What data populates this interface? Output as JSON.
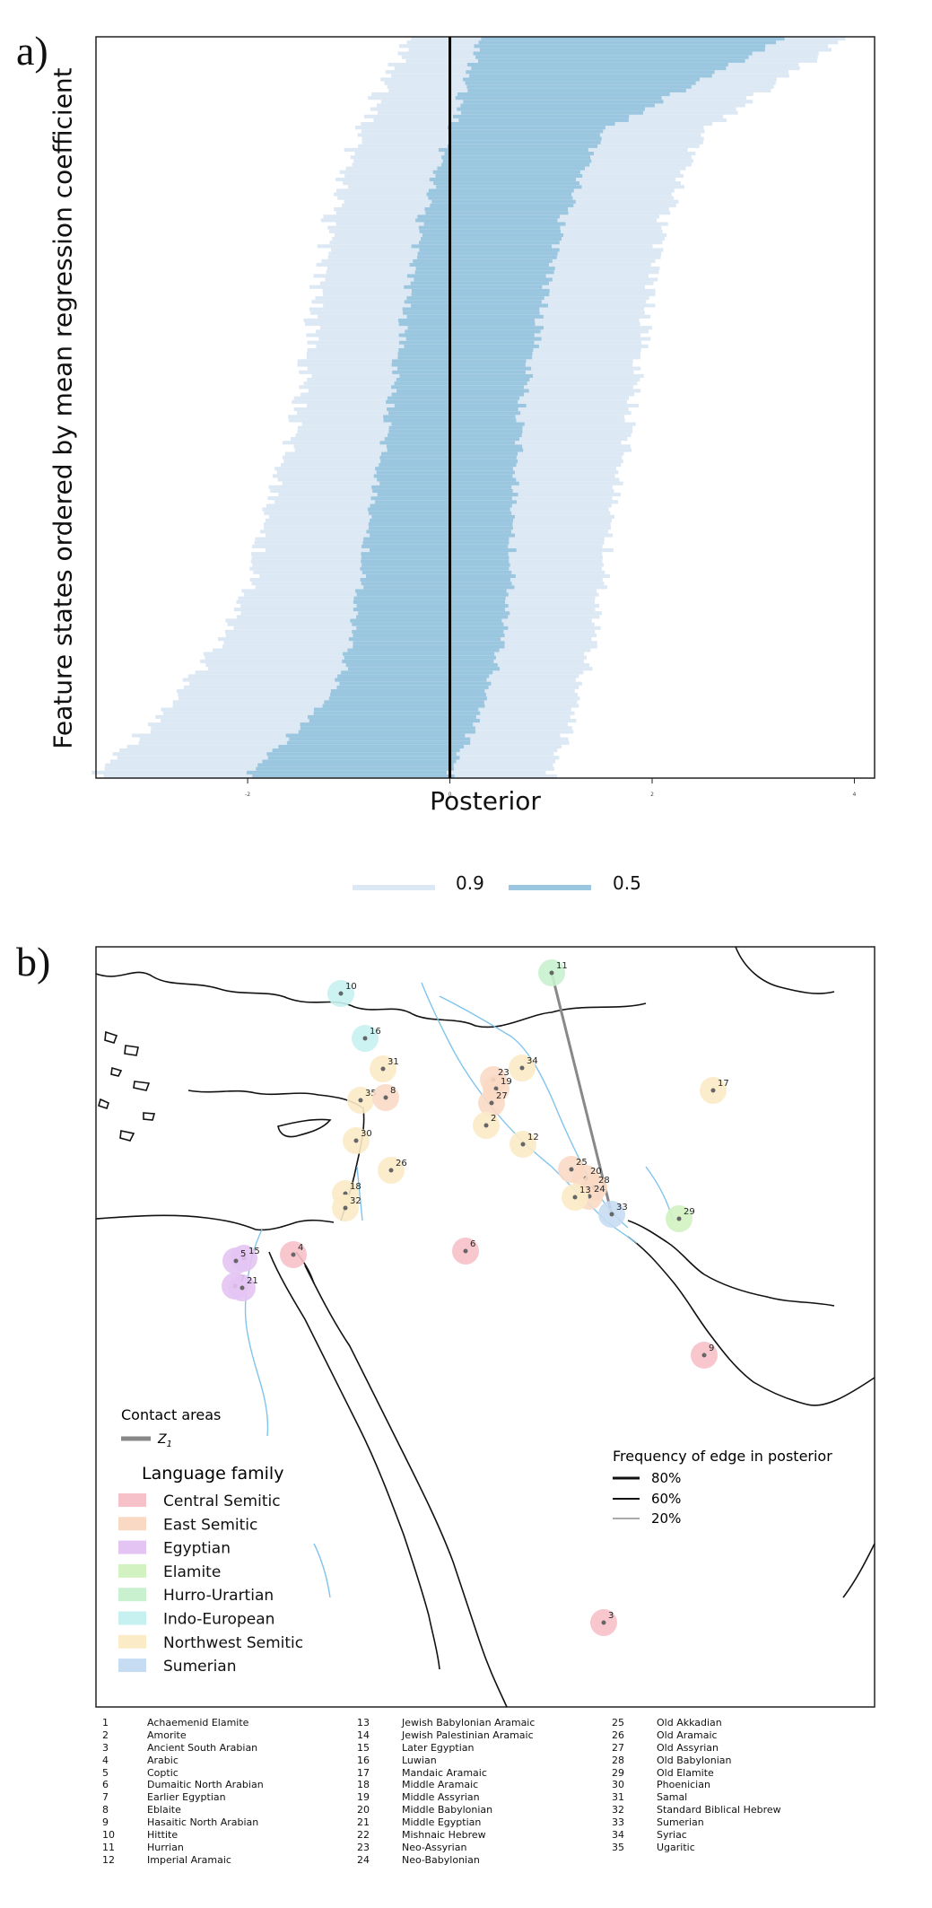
{
  "panel_a": {
    "letter": "a)",
    "ylabel": "Feature states ordered by mean regression coefficient",
    "xlabel": "Posterior",
    "x_ticks": [
      {
        "value": -2,
        "label": "-2"
      },
      {
        "value": 0,
        "label": "0"
      },
      {
        "value": 2,
        "label": "2"
      },
      {
        "value": 4,
        "label": "4"
      }
    ],
    "legend": [
      {
        "label": "0.9",
        "color": "#dce8f3"
      },
      {
        "label": "0.5",
        "color": "#9ac6df"
      }
    ]
  },
  "chart_data": {
    "type": "interval-bars",
    "n_features": 200,
    "xlim": [
      -3.5,
      4.2
    ],
    "intervals": [
      {
        "name": "0.9",
        "color": "#dce8f3"
      },
      {
        "name": "0.5",
        "color": "#9ac6df"
      }
    ],
    "grid": false,
    "reference_line_at": 0,
    "sampled_rows": [
      {
        "rank": 1,
        "lo90": -3.5,
        "lo50": -2.0,
        "hi50": 0.0,
        "hi90": 1.0
      },
      {
        "rank": 25,
        "lo90": -2.6,
        "lo50": -1.1,
        "hi50": 0.4,
        "hi90": 1.3
      },
      {
        "rank": 50,
        "lo90": -2.0,
        "lo50": -0.9,
        "hi50": 0.6,
        "hi90": 1.5
      },
      {
        "rank": 100,
        "lo90": -1.5,
        "lo50": -0.6,
        "hi50": 0.7,
        "hi90": 1.8
      },
      {
        "rank": 150,
        "lo90": -1.2,
        "lo50": -0.3,
        "hi50": 1.1,
        "hi90": 2.1
      },
      {
        "rank": 175,
        "lo90": -0.9,
        "lo50": 0.0,
        "hi50": 1.5,
        "hi90": 2.5
      },
      {
        "rank": 200,
        "lo90": -0.4,
        "lo50": 0.3,
        "hi50": 3.3,
        "hi90": 3.9
      }
    ]
  },
  "panel_b": {
    "letter": "b)",
    "contact_title": "Contact areas",
    "contact_label": "Z",
    "contact_sub": "1",
    "family_title": "Language family",
    "families": [
      {
        "label": "Central Semitic",
        "color": "#f7c1c9"
      },
      {
        "label": "East Semitic",
        "color": "#f9d9c4"
      },
      {
        "label": "Egyptian",
        "color": "#e4c4f3"
      },
      {
        "label": "Elamite",
        "color": "#d2f2c2"
      },
      {
        "label": "Hurro-Urartian",
        "color": "#c9f1cf"
      },
      {
        "label": "Indo-European",
        "color": "#c7f1f1"
      },
      {
        "label": "Northwest Semitic",
        "color": "#fbebc7"
      },
      {
        "label": "Sumerian",
        "color": "#c6dcf2"
      }
    ],
    "freq_title": "Frequency of edge in posterior",
    "freq": [
      {
        "label": "80%"
      },
      {
        "label": "60%"
      },
      {
        "label": "20%"
      }
    ],
    "points": [
      {
        "id": "10",
        "family": 5
      },
      {
        "id": "11",
        "family": 4
      },
      {
        "id": "16",
        "family": 5
      },
      {
        "id": "31",
        "family": 6
      },
      {
        "id": "34",
        "family": 6
      },
      {
        "id": "17",
        "family": 6
      },
      {
        "id": "23",
        "family": 1
      },
      {
        "id": "19",
        "family": 1
      },
      {
        "id": "27",
        "family": 1
      },
      {
        "id": "35",
        "family": 6
      },
      {
        "id": "8",
        "family": 1
      },
      {
        "id": "2",
        "family": 6
      },
      {
        "id": "30",
        "family": 6
      },
      {
        "id": "12",
        "family": 6
      },
      {
        "id": "26",
        "family": 6
      },
      {
        "id": "25",
        "family": 1
      },
      {
        "id": "20",
        "family": 1
      },
      {
        "id": "28",
        "family": 1
      },
      {
        "id": "24",
        "family": 1
      },
      {
        "id": "13",
        "family": 6
      },
      {
        "id": "18",
        "family": 6
      },
      {
        "id": "32",
        "family": 6
      },
      {
        "id": "33",
        "family": 7
      },
      {
        "id": "29",
        "family": 3
      },
      {
        "id": "6",
        "family": 0
      },
      {
        "id": "4",
        "family": 0
      },
      {
        "id": "15",
        "family": 2
      },
      {
        "id": "5",
        "family": 2
      },
      {
        "id": "7",
        "family": 2
      },
      {
        "id": "21",
        "family": 2
      },
      {
        "id": "9",
        "family": 0
      },
      {
        "id": "3",
        "family": 0
      }
    ],
    "edge": {
      "from": "11",
      "to": "33",
      "frequency": "20%"
    }
  },
  "key": [
    {
      "num": "1",
      "name": "Achaemenid Elamite"
    },
    {
      "num": "2",
      "name": "Amorite"
    },
    {
      "num": "3",
      "name": "Ancient South Arabian"
    },
    {
      "num": "4",
      "name": "Arabic"
    },
    {
      "num": "5",
      "name": "Coptic"
    },
    {
      "num": "6",
      "name": "Dumaitic North Arabian"
    },
    {
      "num": "7",
      "name": "Earlier Egyptian"
    },
    {
      "num": "8",
      "name": "Eblaite"
    },
    {
      "num": "9",
      "name": "Hasaitic North Arabian"
    },
    {
      "num": "10",
      "name": "Hittite"
    },
    {
      "num": "11",
      "name": "Hurrian"
    },
    {
      "num": "12",
      "name": "Imperial Aramaic"
    },
    {
      "num": "13",
      "name": "Jewish Babylonian Aramaic"
    },
    {
      "num": "14",
      "name": "Jewish Palestinian Aramaic"
    },
    {
      "num": "15",
      "name": "Later Egyptian"
    },
    {
      "num": "16",
      "name": "Luwian"
    },
    {
      "num": "17",
      "name": "Mandaic Aramaic"
    },
    {
      "num": "18",
      "name": "Middle Aramaic"
    },
    {
      "num": "19",
      "name": "Middle Assyrian"
    },
    {
      "num": "20",
      "name": "Middle Babylonian"
    },
    {
      "num": "21",
      "name": "Middle Egyptian"
    },
    {
      "num": "22",
      "name": "Mishnaic Hebrew"
    },
    {
      "num": "23",
      "name": "Neo-Assyrian"
    },
    {
      "num": "24",
      "name": "Neo-Babylonian"
    },
    {
      "num": "25",
      "name": "Old Akkadian"
    },
    {
      "num": "26",
      "name": "Old Aramaic"
    },
    {
      "num": "27",
      "name": "Old Assyrian"
    },
    {
      "num": "28",
      "name": "Old Babylonian"
    },
    {
      "num": "29",
      "name": "Old Elamite"
    },
    {
      "num": "30",
      "name": "Phoenician"
    },
    {
      "num": "31",
      "name": "Samal"
    },
    {
      "num": "32",
      "name": "Standard Biblical Hebrew"
    },
    {
      "num": "33",
      "name": "Sumerian"
    },
    {
      "num": "34",
      "name": "Syriac"
    },
    {
      "num": "35",
      "name": "Ugaritic"
    }
  ]
}
